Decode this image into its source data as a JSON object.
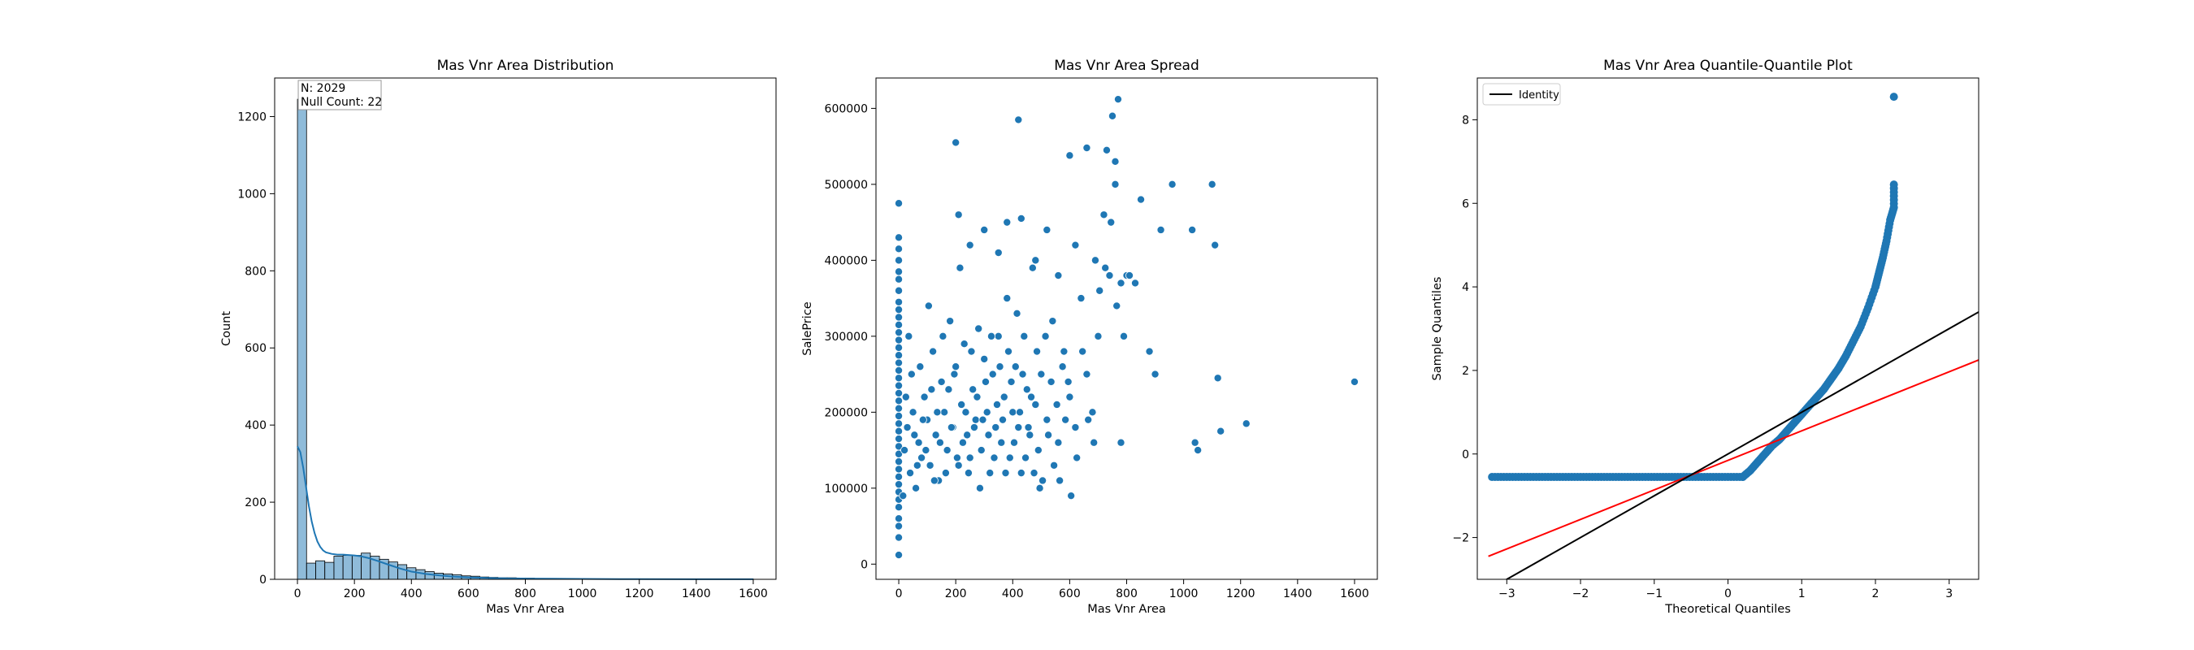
{
  "chart_data": [
    {
      "type": "bar",
      "title": "Mas Vnr Area Distribution",
      "xlabel": "Mas Vnr Area",
      "ylabel": "Count",
      "xlim": [
        -80,
        1680
      ],
      "ylim": [
        0,
        1300
      ],
      "xticks": [
        0,
        200,
        400,
        600,
        800,
        1000,
        1200,
        1400,
        1600
      ],
      "yticks": [
        0,
        200,
        400,
        600,
        800,
        1000,
        1200
      ],
      "bin_width": 32,
      "bin_start": 0,
      "values": [
        1245,
        42,
        48,
        44,
        60,
        62,
        62,
        68,
        60,
        52,
        45,
        38,
        30,
        25,
        20,
        16,
        14,
        12,
        9,
        8,
        6,
        5,
        4,
        4,
        3,
        3,
        2,
        2,
        2,
        1,
        1,
        1,
        1,
        1,
        1,
        1,
        0,
        0,
        1,
        0,
        0,
        0,
        0,
        0,
        0,
        0,
        0,
        0,
        0,
        1
      ],
      "kde": {
        "x": [
          0,
          10,
          20,
          30,
          40,
          50,
          60,
          70,
          80,
          90,
          100,
          120,
          140,
          160,
          180,
          200,
          220,
          250,
          280,
          320,
          360,
          400,
          450,
          500,
          550,
          600,
          700,
          800,
          900,
          1000,
          1200,
          1400,
          1600
        ],
        "y": [
          345,
          330,
          290,
          240,
          190,
          150,
          120,
          98,
          84,
          75,
          70,
          66,
          64,
          64,
          63,
          62,
          60,
          55,
          48,
          38,
          28,
          20,
          14,
          10,
          7,
          5,
          3,
          2,
          1.5,
          1,
          0.5,
          0.3,
          0.2
        ]
      },
      "annotation": [
        "N: 2029",
        "Null Count: 22"
      ]
    },
    {
      "type": "scatter",
      "title": "Mas Vnr Area Spread",
      "xlabel": "Mas Vnr Area",
      "ylabel": "SalePrice",
      "xlim": [
        -80,
        1680
      ],
      "ylim": [
        -20000,
        640000
      ],
      "xticks": [
        0,
        200,
        400,
        600,
        800,
        1000,
        1200,
        1400,
        1600
      ],
      "yticks": [
        0,
        100000,
        200000,
        300000,
        400000,
        500000,
        600000
      ],
      "points": [
        [
          0,
          12000
        ],
        [
          0,
          35000
        ],
        [
          0,
          50000
        ],
        [
          0,
          60000
        ],
        [
          0,
          75000
        ],
        [
          0,
          85000
        ],
        [
          0,
          95000
        ],
        [
          0,
          105000
        ],
        [
          0,
          115000
        ],
        [
          0,
          125000
        ],
        [
          0,
          135000
        ],
        [
          0,
          145000
        ],
        [
          0,
          155000
        ],
        [
          0,
          165000
        ],
        [
          0,
          175000
        ],
        [
          0,
          185000
        ],
        [
          0,
          195000
        ],
        [
          0,
          205000
        ],
        [
          0,
          215000
        ],
        [
          0,
          225000
        ],
        [
          0,
          235000
        ],
        [
          0,
          245000
        ],
        [
          0,
          255000
        ],
        [
          0,
          265000
        ],
        [
          0,
          275000
        ],
        [
          0,
          285000
        ],
        [
          0,
          295000
        ],
        [
          0,
          305000
        ],
        [
          0,
          315000
        ],
        [
          0,
          325000
        ],
        [
          0,
          335000
        ],
        [
          0,
          345000
        ],
        [
          0,
          360000
        ],
        [
          0,
          375000
        ],
        [
          0,
          385000
        ],
        [
          0,
          400000
        ],
        [
          0,
          415000
        ],
        [
          0,
          430000
        ],
        [
          0,
          475000
        ],
        [
          20,
          150000
        ],
        [
          30,
          180000
        ],
        [
          40,
          120000
        ],
        [
          45,
          250000
        ],
        [
          50,
          200000
        ],
        [
          60,
          100000
        ],
        [
          70,
          160000
        ],
        [
          80,
          140000
        ],
        [
          90,
          220000
        ],
        [
          100,
          190000
        ],
        [
          110,
          130000
        ],
        [
          120,
          280000
        ],
        [
          130,
          170000
        ],
        [
          140,
          110000
        ],
        [
          150,
          240000
        ],
        [
          160,
          200000
        ],
        [
          170,
          150000
        ],
        [
          180,
          320000
        ],
        [
          190,
          180000
        ],
        [
          200,
          260000
        ],
        [
          210,
          130000
        ],
        [
          220,
          210000
        ],
        [
          230,
          290000
        ],
        [
          240,
          170000
        ],
        [
          250,
          140000
        ],
        [
          260,
          230000
        ],
        [
          270,
          190000
        ],
        [
          280,
          310000
        ],
        [
          290,
          150000
        ],
        [
          300,
          270000
        ],
        [
          310,
          200000
        ],
        [
          320,
          120000
        ],
        [
          330,
          250000
        ],
        [
          340,
          180000
        ],
        [
          350,
          300000
        ],
        [
          360,
          160000
        ],
        [
          370,
          220000
        ],
        [
          380,
          350000
        ],
        [
          390,
          140000
        ],
        [
          400,
          200000
        ],
        [
          410,
          260000
        ],
        [
          420,
          180000
        ],
        [
          430,
          120000
        ],
        [
          440,
          300000
        ],
        [
          450,
          230000
        ],
        [
          460,
          170000
        ],
        [
          470,
          390000
        ],
        [
          480,
          210000
        ],
        [
          490,
          150000
        ],
        [
          500,
          250000
        ],
        [
          520,
          190000
        ],
        [
          540,
          320000
        ],
        [
          560,
          160000
        ],
        [
          580,
          280000
        ],
        [
          600,
          220000
        ],
        [
          620,
          180000
        ],
        [
          640,
          350000
        ],
        [
          660,
          250000
        ],
        [
          680,
          200000
        ],
        [
          700,
          300000
        ],
        [
          720,
          460000
        ],
        [
          740,
          380000
        ],
        [
          760,
          500000
        ],
        [
          780,
          160000
        ],
        [
          800,
          380000
        ],
        [
          850,
          480000
        ],
        [
          880,
          280000
        ],
        [
          900,
          250000
        ],
        [
          920,
          440000
        ],
        [
          960,
          500000
        ],
        [
          1030,
          440000
        ],
        [
          1040,
          160000
        ],
        [
          1050,
          150000
        ],
        [
          1100,
          500000
        ],
        [
          1110,
          420000
        ],
        [
          1120,
          245000
        ],
        [
          1130,
          175000
        ],
        [
          1220,
          185000
        ],
        [
          1600,
          240000
        ],
        [
          200,
          555000
        ],
        [
          420,
          585000
        ],
        [
          750,
          590000
        ],
        [
          770,
          612000
        ],
        [
          730,
          545000
        ],
        [
          600,
          538000
        ],
        [
          660,
          548000
        ],
        [
          760,
          530000
        ],
        [
          780,
          370000
        ],
        [
          210,
          460000
        ],
        [
          250,
          420000
        ],
        [
          300,
          440000
        ],
        [
          350,
          410000
        ],
        [
          380,
          450000
        ],
        [
          430,
          455000
        ],
        [
          480,
          400000
        ],
        [
          520,
          440000
        ],
        [
          560,
          380000
        ],
        [
          620,
          420000
        ],
        [
          690,
          400000
        ],
        [
          15,
          90000
        ],
        [
          25,
          220000
        ],
        [
          35,
          300000
        ],
        [
          55,
          170000
        ],
        [
          65,
          130000
        ],
        [
          75,
          260000
        ],
        [
          85,
          190000
        ],
        [
          95,
          150000
        ],
        [
          105,
          340000
        ],
        [
          115,
          230000
        ],
        [
          125,
          110000
        ],
        [
          135,
          200000
        ],
        [
          145,
          160000
        ],
        [
          155,
          300000
        ],
        [
          165,
          120000
        ],
        [
          175,
          230000
        ],
        [
          185,
          180000
        ],
        [
          195,
          250000
        ],
        [
          205,
          140000
        ],
        [
          215,
          390000
        ],
        [
          225,
          160000
        ],
        [
          235,
          200000
        ],
        [
          245,
          120000
        ],
        [
          255,
          280000
        ],
        [
          265,
          180000
        ],
        [
          275,
          220000
        ],
        [
          285,
          100000
        ],
        [
          295,
          190000
        ],
        [
          305,
          240000
        ],
        [
          315,
          170000
        ],
        [
          325,
          300000
        ],
        [
          335,
          140000
        ],
        [
          345,
          210000
        ],
        [
          355,
          260000
        ],
        [
          365,
          190000
        ],
        [
          375,
          120000
        ],
        [
          385,
          280000
        ],
        [
          395,
          240000
        ],
        [
          405,
          160000
        ],
        [
          415,
          330000
        ],
        [
          425,
          200000
        ],
        [
          435,
          250000
        ],
        [
          445,
          140000
        ],
        [
          455,
          180000
        ],
        [
          465,
          220000
        ],
        [
          475,
          120000
        ],
        [
          485,
          280000
        ],
        [
          495,
          100000
        ],
        [
          505,
          110000
        ],
        [
          515,
          300000
        ],
        [
          525,
          170000
        ],
        [
          535,
          240000
        ],
        [
          545,
          130000
        ],
        [
          555,
          210000
        ],
        [
          565,
          110000
        ],
        [
          575,
          260000
        ],
        [
          585,
          190000
        ],
        [
          595,
          240000
        ],
        [
          605,
          90000
        ],
        [
          625,
          140000
        ],
        [
          645,
          280000
        ],
        [
          665,
          190000
        ],
        [
          685,
          160000
        ],
        [
          705,
          360000
        ],
        [
          725,
          390000
        ],
        [
          745,
          450000
        ],
        [
          765,
          340000
        ],
        [
          790,
          300000
        ],
        [
          810,
          380000
        ],
        [
          830,
          370000
        ]
      ]
    },
    {
      "type": "scatter",
      "title": "Mas Vnr Area Quantile-Quantile Plot",
      "xlabel": "Theoretical Quantiles",
      "ylabel": "Sample Quantiles",
      "xlim": [
        -3.4,
        3.4
      ],
      "ylim": [
        -3.0,
        9.0
      ],
      "xticks": [
        -3,
        -2,
        -1,
        0,
        1,
        2,
        3
      ],
      "yticks": [
        -2,
        0,
        2,
        4,
        6,
        8
      ],
      "legend": {
        "label": "Identity",
        "loc": "upper left"
      },
      "identity_line": [
        [
          -3.4,
          -3.4
        ],
        [
          3.4,
          3.4
        ]
      ],
      "fit_line": [
        [
          -3.25,
          -2.45
        ],
        [
          3.4,
          2.25
        ]
      ],
      "flat_segment": {
        "x_start": -3.2,
        "x_end": 0.2,
        "y": -0.55
      },
      "points": [
        [
          0.2,
          -0.55
        ],
        [
          0.3,
          -0.4
        ],
        [
          0.4,
          -0.2
        ],
        [
          0.5,
          0.0
        ],
        [
          0.6,
          0.2
        ],
        [
          0.7,
          0.35
        ],
        [
          0.8,
          0.55
        ],
        [
          0.9,
          0.75
        ],
        [
          1.0,
          0.95
        ],
        [
          1.1,
          1.15
        ],
        [
          1.2,
          1.35
        ],
        [
          1.3,
          1.55
        ],
        [
          1.4,
          1.8
        ],
        [
          1.5,
          2.05
        ],
        [
          1.6,
          2.35
        ],
        [
          1.7,
          2.7
        ],
        [
          1.8,
          3.05
        ],
        [
          1.9,
          3.5
        ],
        [
          2.0,
          4.0
        ],
        [
          2.05,
          4.35
        ],
        [
          2.1,
          4.7
        ],
        [
          2.15,
          5.1
        ],
        [
          2.2,
          5.6
        ],
        [
          2.25,
          5.9
        ],
        [
          2.25,
          6.45
        ],
        [
          2.25,
          8.55
        ]
      ]
    }
  ]
}
